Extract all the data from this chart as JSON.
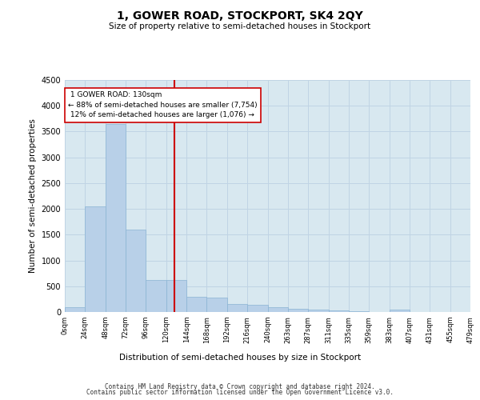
{
  "title": "1, GOWER ROAD, STOCKPORT, SK4 2QY",
  "subtitle": "Size of property relative to semi-detached houses in Stockport",
  "xlabel": "Distribution of semi-detached houses by size in Stockport",
  "ylabel": "Number of semi-detached properties",
  "property_size": 130,
  "pct_smaller": 88,
  "pct_larger": 12,
  "count_smaller": 7754,
  "count_larger": 1076,
  "bin_width": 24,
  "bar_values": [
    100,
    2050,
    3650,
    1600,
    620,
    620,
    290,
    280,
    150,
    140,
    95,
    65,
    50,
    30,
    20,
    0,
    40,
    0,
    0,
    0
  ],
  "bar_color": "#b8d0e8",
  "bar_edge_color": "#8ab4d4",
  "grid_color": "#c0d4e4",
  "background_color": "#d8e8f0",
  "vline_color": "#cc0000",
  "annotation_box_color": "#ffffff",
  "annotation_box_edge": "#cc0000",
  "footer_line1": "Contains HM Land Registry data © Crown copyright and database right 2024.",
  "footer_line2": "Contains public sector information licensed under the Open Government Licence v3.0.",
  "ylim": [
    0,
    4500
  ],
  "yticks": [
    0,
    500,
    1000,
    1500,
    2000,
    2500,
    3000,
    3500,
    4000,
    4500
  ],
  "xtick_labels": [
    "0sqm",
    "24sqm",
    "48sqm",
    "72sqm",
    "96sqm",
    "120sqm",
    "144sqm",
    "168sqm",
    "192sqm",
    "216sqm",
    "240sqm",
    "263sqm",
    "287sqm",
    "311sqm",
    "335sqm",
    "359sqm",
    "383sqm",
    "407sqm",
    "431sqm",
    "455sqm",
    "479sqm"
  ]
}
